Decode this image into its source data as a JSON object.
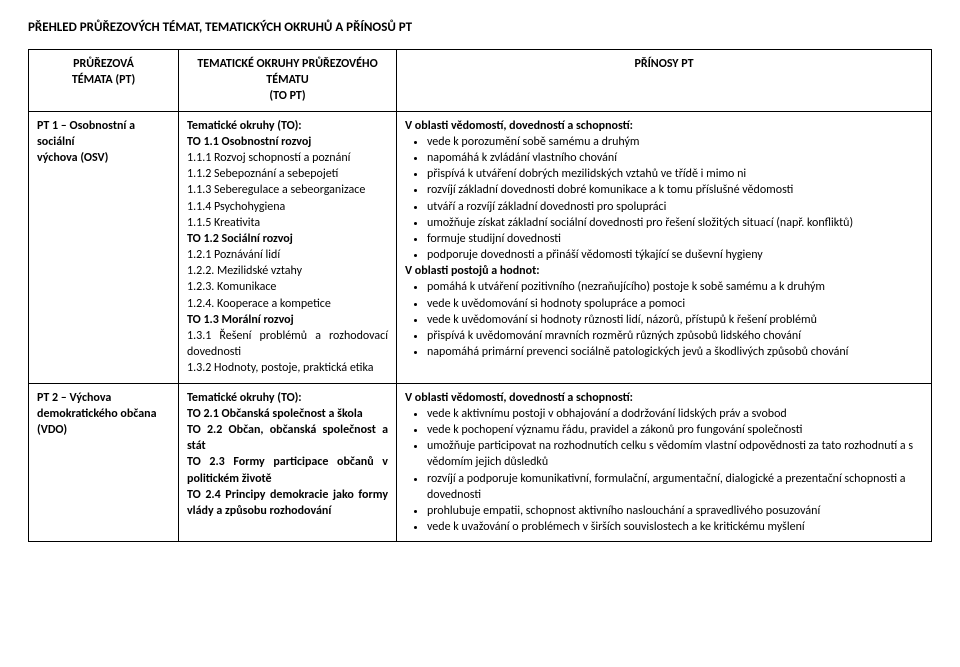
{
  "title": "PŘEHLED PRŮŘEZOVÝCH TÉMAT, TEMATICKÝCH OKRUHŮ A PŘÍNOSŮ PT",
  "header": {
    "col1_l1": "PRŮŘEZOVÁ",
    "col1_l2": "TÉMATA (PT)",
    "col2_l1": "TEMATICKÉ OKRUHY PRŮŘEZOVÉHO",
    "col2_l2": "TÉMATU",
    "col2_l3": "(TO PT)",
    "col3": "PŘÍNOSY PT"
  },
  "row1": {
    "c1_l1": "PT 1 – Osobnostní a sociální",
    "c1_l2": "výchova (OSV)",
    "c2": {
      "heading": "Tematické okruhy (TO):",
      "to1": "TO 1.1 Osobnostní rozvoj",
      "i11": "1.1.1 Rozvoj schopností a poznání",
      "i12": "1.1.2 Sebepoznání a sebepojetí",
      "i13": "1.1.3 Seberegulace a sebeorganizace",
      "i14": "1.1.4 Psychohygiena",
      "i15": "1.1.5 Kreativita",
      "to2": "TO 1.2 Sociální rozvoj",
      "i21": "1.2.1 Poznávání lidí",
      "i22": "1.2.2. Mezilidské vztahy",
      "i23": "1.2.3. Komunikace",
      "i24": "1.2.4. Kooperace a kompetice",
      "to3": "TO 1.3 Morální rozvoj",
      "i31": "1.3.1 Řešení problémů a rozhodovací dovednosti",
      "i32": "1.3.2 Hodnoty, postoje, praktická etika"
    },
    "c3": {
      "h1": "V oblasti vědomostí, dovedností a schopností:",
      "b1": [
        "vede k porozumění sobě samému a druhým",
        "napomáhá k zvládání vlastního chování",
        "přispívá k utváření dobrých mezilidských vztahů ve třídě i mimo ni",
        "rozvíjí základní dovednosti dobré komunikace a k tomu příslušné vědomosti",
        "utváří a rozvíjí základní dovednosti pro spolupráci",
        "umožňuje získat základní sociální dovednosti pro řešení složitých situací (např. konfliktů)",
        "formuje studijní dovednosti",
        "podporuje dovednosti a přináší vědomosti týkající se duševní hygieny"
      ],
      "h2": "V oblasti postojů a hodnot:",
      "b2": [
        "pomáhá k utváření pozitivního (nezraňujícího) postoje k sobě samému a k druhým",
        "vede k uvědomování si hodnoty spolupráce a pomoci",
        "vede k uvědomování si hodnoty různosti lidí, názorů, přístupů k řešení problémů",
        "přispívá k uvědomování mravních rozměrů různých způsobů lidského chování",
        "napomáhá primární prevenci sociálně patologických jevů a škodlivých způsobů chování"
      ]
    }
  },
  "row2": {
    "c1_l1": "PT 2 – Výchova",
    "c1_l2": "demokratického občana",
    "c1_l3": "(VDO)",
    "c2": {
      "heading": "Tematické okruhy (TO):",
      "to1": "TO 2.1 Občanská společnost a škola",
      "to2": "TO 2.2 Občan, občanská společnost a stát",
      "to3": "TO 2.3 Formy participace občanů v politickém životě",
      "to4": "TO 2.4 Principy demokracie jako formy vlády a způsobu rozhodování"
    },
    "c3": {
      "h1": "V oblasti vědomostí, dovedností a schopností:",
      "b1": [
        "vede k aktivnímu postoji v obhajování a dodržování lidských práv a svobod",
        "vede k pochopení významu řádu, pravidel a zákonů pro fungování společnosti",
        "umožňuje participovat na rozhodnutích celku s vědomím vlastní odpovědnosti za tato rozhodnutí a s vědomím jejich důsledků",
        "rozvíjí a podporuje komunikativní, formulační, argumentační, dialogické a prezentační schopnosti a dovednosti",
        "prohlubuje empatii, schopnost aktivního naslouchání a spravedlivého posuzování",
        "vede k uvažování o problémech v širších souvislostech a ke kritickému myšlení"
      ]
    }
  }
}
